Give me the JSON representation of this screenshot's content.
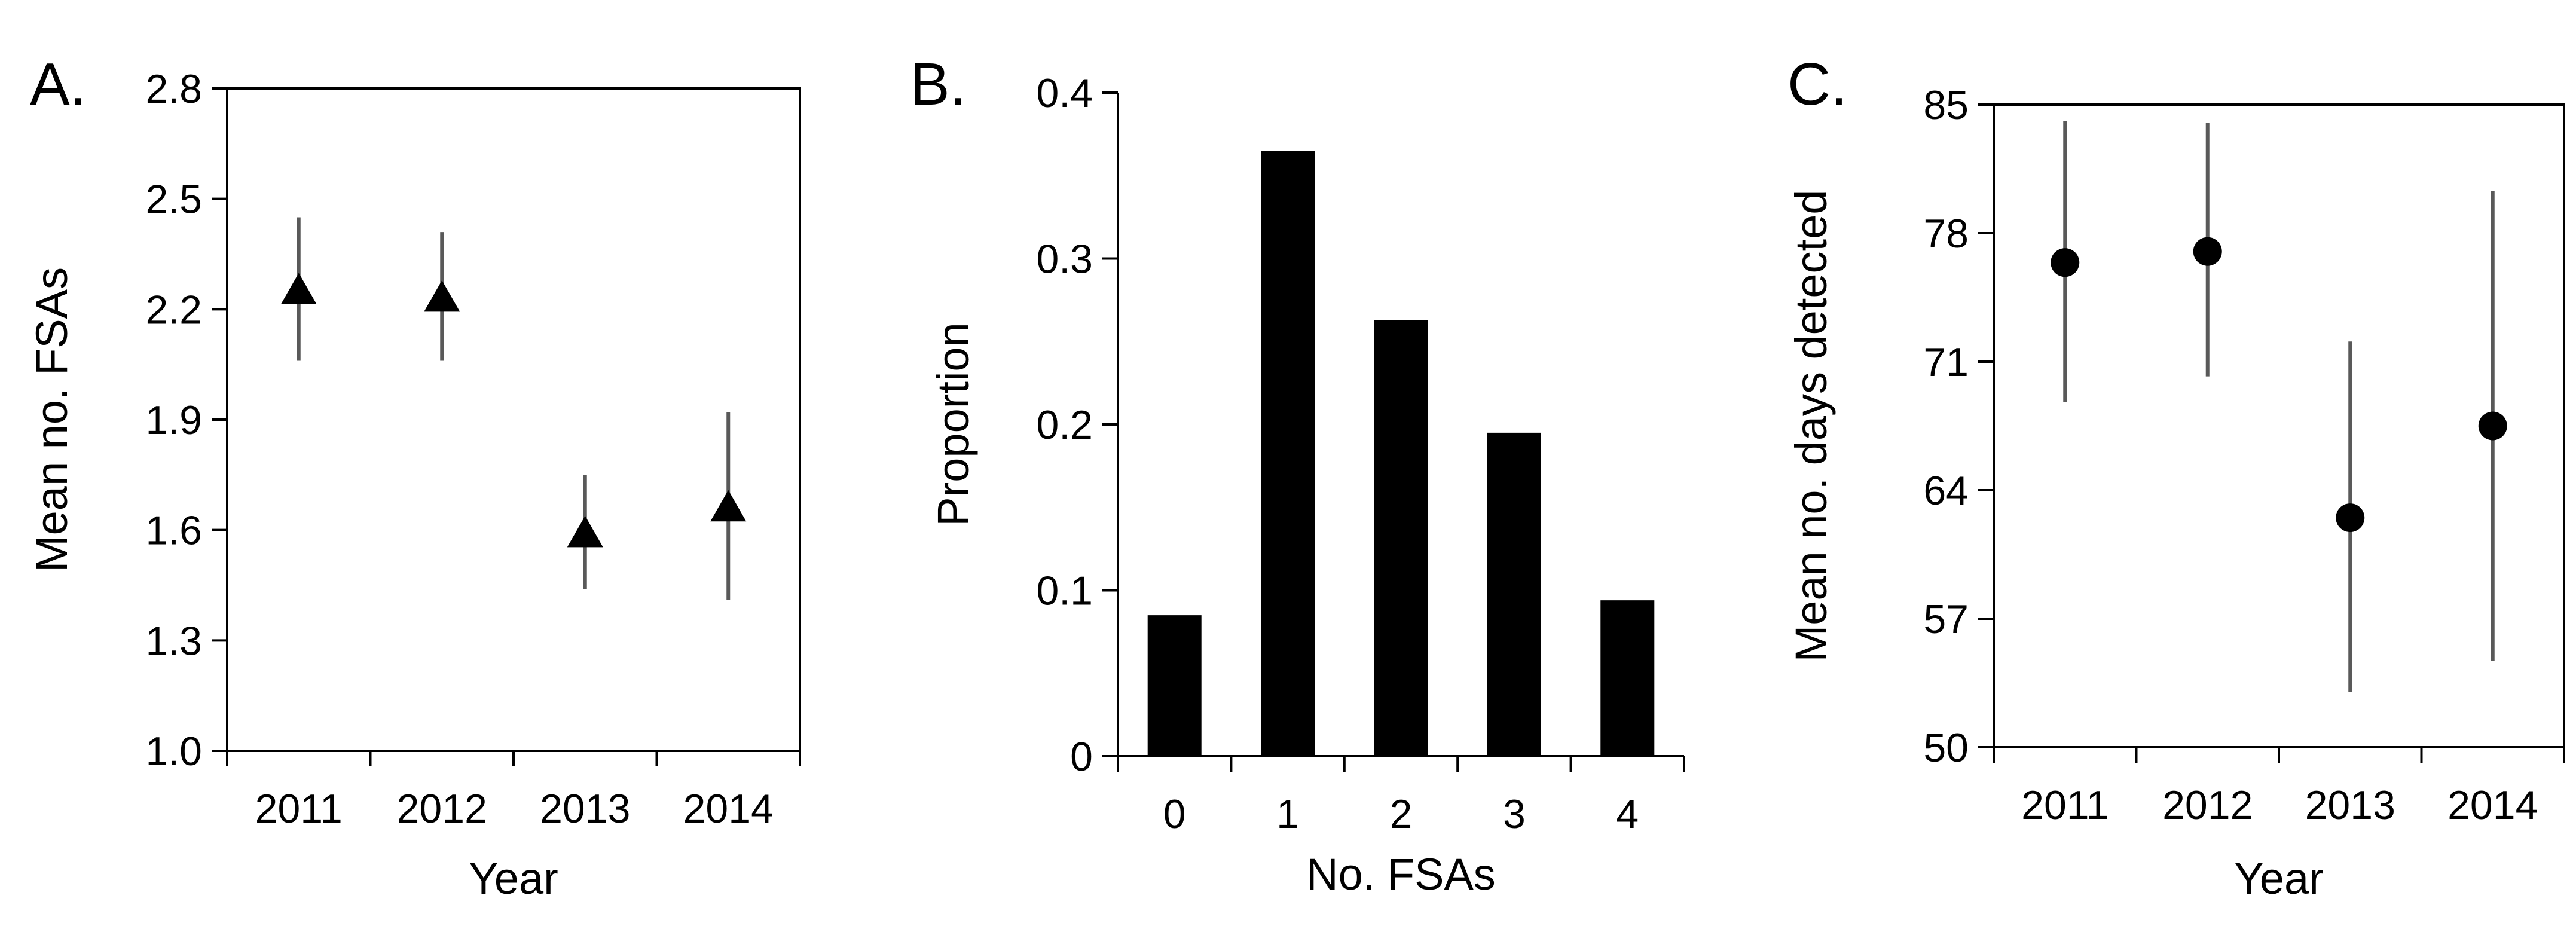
{
  "figure": {
    "colors": {
      "marker": "#000000",
      "bar": "#000000",
      "errorbar": "#595959",
      "axis": "#000000"
    }
  },
  "chart_data": [
    {
      "type": "scatter",
      "panel_label": "A.",
      "marker": "triangle",
      "xlabel": "Year",
      "ylabel": "Mean no. FSAs",
      "categories": [
        "2011",
        "2012",
        "2013",
        "2014"
      ],
      "values": [
        2.25,
        2.23,
        1.59,
        1.66
      ],
      "error_low": [
        2.06,
        2.06,
        1.44,
        1.41
      ],
      "error_high": [
        2.45,
        2.41,
        1.75,
        1.92
      ],
      "ylim": [
        1.0,
        2.8
      ],
      "yticks": [
        "1.0",
        "1.3",
        "1.6",
        "1.9",
        "2.2",
        "2.5",
        "2.8"
      ],
      "grid": false
    },
    {
      "type": "bar",
      "panel_label": "B.",
      "xlabel": "No. FSAs",
      "ylabel": "Proportion",
      "categories": [
        "0",
        "1",
        "2",
        "3",
        "4"
      ],
      "values": [
        0.085,
        0.365,
        0.263,
        0.195,
        0.094
      ],
      "ylim": [
        0,
        0.4
      ],
      "yticks": [
        "0",
        "0.1",
        "0.2",
        "0.3",
        "0.4"
      ],
      "grid": false
    },
    {
      "type": "scatter",
      "panel_label": "C.",
      "marker": "circle",
      "xlabel": "Year",
      "ylabel": "Mean no. days detected",
      "categories": [
        "2011",
        "2012",
        "2013",
        "2014"
      ],
      "values": [
        76.4,
        77.0,
        62.5,
        67.5
      ],
      "error_low": [
        68.8,
        70.2,
        53.0,
        54.7
      ],
      "error_high": [
        84.1,
        84.0,
        72.1,
        80.3
      ],
      "ylim": [
        50,
        85
      ],
      "yticks": [
        "50",
        "57",
        "64",
        "71",
        "78",
        "85"
      ],
      "grid": false
    }
  ]
}
